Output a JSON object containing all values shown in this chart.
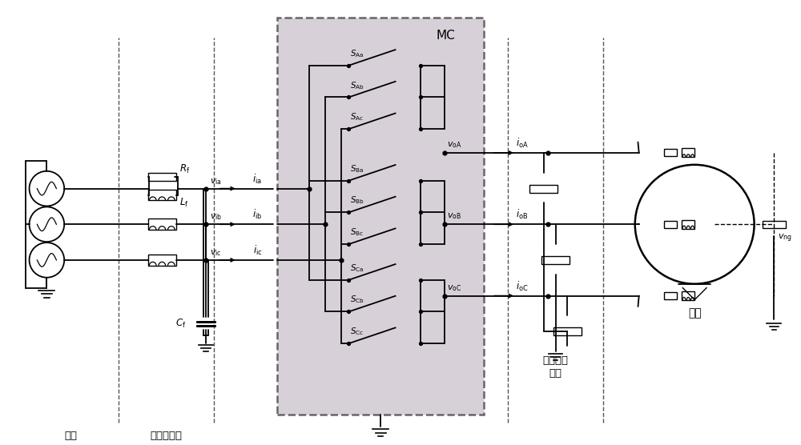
{
  "bg_color": "#ffffff",
  "mc_box_color": "#d8d0d8",
  "labels": {
    "dianwang": "电网",
    "filter": "输入滤波器",
    "MC": "MC",
    "common_mode": "共模电压\n检测",
    "motor": "电机",
    "Rf": "$R_{\\mathrm{f}}$",
    "Lf": "$L_{\\mathrm{f}}$",
    "Cf": "$C_{\\mathrm{f}}$",
    "via": "$v_{\\mathrm{ia}}$",
    "vib": "$v_{\\mathrm{ib}}$",
    "vic": "$v_{\\mathrm{ic}}$",
    "iia": "$i_{\\mathrm{ia}}$",
    "iib": "$i_{\\mathrm{ib}}$",
    "iic": "$i_{\\mathrm{ic}}$",
    "voA": "$v_{\\mathrm{oA}}$",
    "voB": "$v_{\\mathrm{oB}}$",
    "voC": "$v_{\\mathrm{oC}}$",
    "ioA": "$i_{\\mathrm{oA}}$",
    "ioB": "$i_{\\mathrm{oB}}$",
    "ioC": "$i_{\\mathrm{oC}}$",
    "vng": "$v_{\\mathrm{ng}}$",
    "SAa": "$S_{\\mathrm{Aa}}$",
    "SAb": "$S_{\\mathrm{Ab}}$",
    "SAc": "$S_{\\mathrm{Ac}}$",
    "SBa": "$S_{\\mathrm{Ba}}$",
    "SBb": "$S_{\\mathrm{Bb}}$",
    "SBc": "$S_{\\mathrm{Bc}}$",
    "SCa": "$S_{\\mathrm{Ca}}$",
    "SCb": "$S_{\\mathrm{Cb}}$",
    "SCc": "$S_{\\mathrm{Cc}}$"
  }
}
